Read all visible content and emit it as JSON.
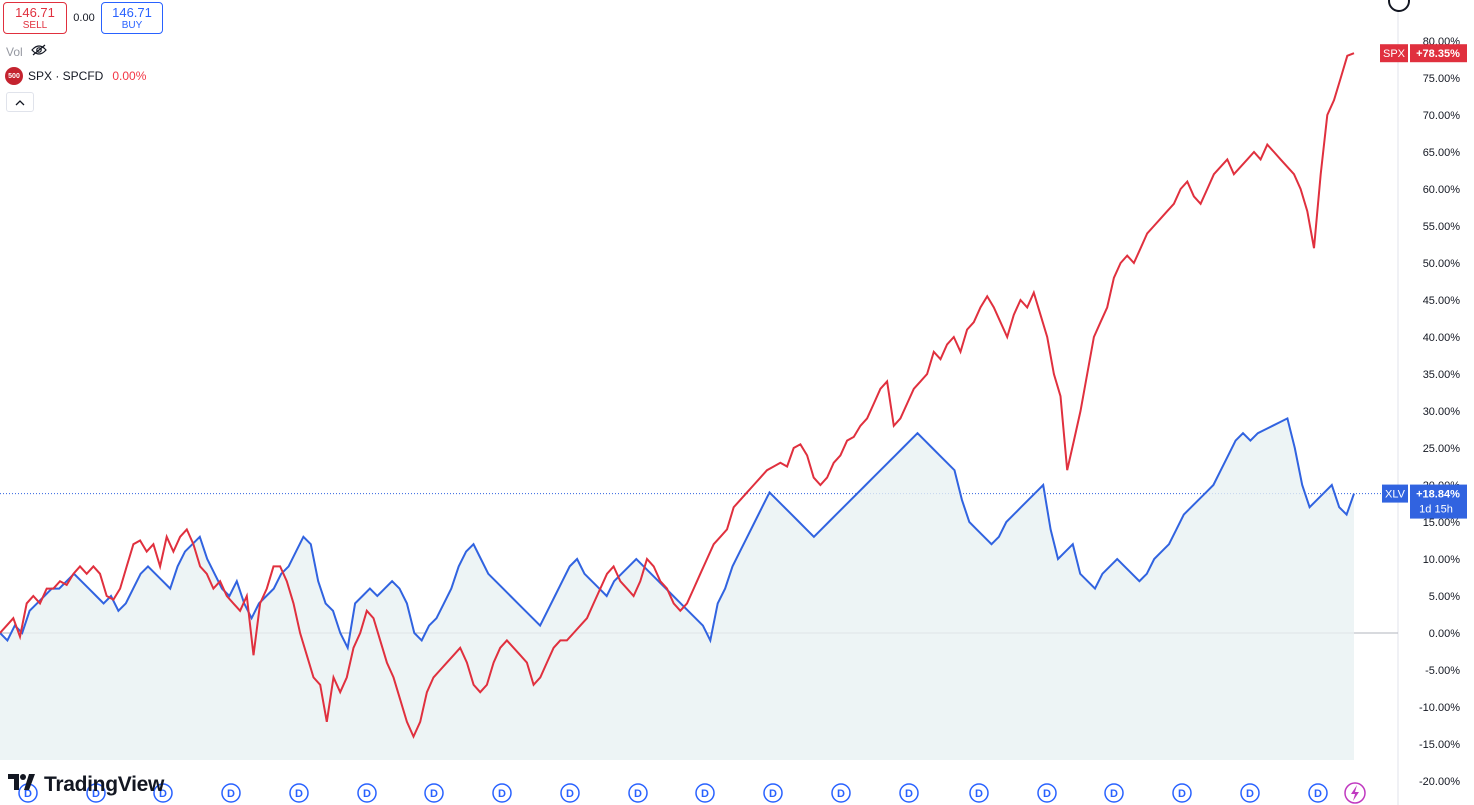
{
  "trade": {
    "sell_price": "146.71",
    "sell_label": "SELL",
    "buy_price": "146.71",
    "buy_label": "BUY",
    "spread": "0.00"
  },
  "legend": {
    "vol_label": "Vol",
    "badge": "500",
    "symbol": "SPX · SPCFD",
    "change": "0.00%"
  },
  "brand": {
    "name": "TradingView"
  },
  "icons": {
    "hide": "eye-slash-icon",
    "collapse": "chevron-up-icon",
    "logo": "tradingview-logo-icon",
    "dividend": "dividend-marker-icon",
    "lightning": "lightning-icon"
  },
  "colors": {
    "spx": "#e0303e",
    "xlv": "#3163e0",
    "area": "#e8f1f3",
    "grid": "#b2b5be"
  },
  "chart_data": {
    "type": "line",
    "y_unit": "%",
    "ylim": [
      -20,
      82
    ],
    "grid": false,
    "y_ticks": [
      "80.00%",
      "75.00%",
      "70.00%",
      "65.00%",
      "60.00%",
      "55.00%",
      "50.00%",
      "45.00%",
      "40.00%",
      "35.00%",
      "30.00%",
      "25.00%",
      "20.00%",
      "15.00%",
      "10.00%",
      "5.00%",
      "0.00%",
      "-5.00%",
      "-10.00%",
      "-15.00%",
      "-20.00%"
    ],
    "series": [
      {
        "name": "SPX",
        "last_label": "+78.35%",
        "values": [
          0,
          1,
          2,
          -0.5,
          4,
          5,
          4,
          6,
          6,
          7,
          6.5,
          8,
          9,
          8,
          9,
          8,
          5,
          4.5,
          6,
          9,
          12,
          12.5,
          11,
          12,
          9,
          13,
          11,
          13,
          14,
          12,
          9,
          8,
          6,
          7,
          5,
          4,
          3,
          5,
          -3,
          4,
          6,
          9,
          9,
          7,
          4,
          0,
          -3,
          -6,
          -7,
          -12,
          -6,
          -8,
          -6,
          -2,
          0,
          3,
          2,
          -1,
          -4,
          -6,
          -9,
          -12,
          -14,
          -12,
          -8,
          -6,
          -5,
          -4,
          -3,
          -2,
          -4,
          -7,
          -8,
          -7,
          -4,
          -2,
          -1,
          -2,
          -3,
          -4,
          -7,
          -6,
          -4,
          -2,
          -1,
          -1,
          0,
          1,
          2,
          4,
          6,
          8,
          9,
          7,
          6,
          5,
          7,
          10,
          9,
          7,
          6,
          4,
          3,
          4,
          6,
          8,
          10,
          12,
          13,
          14,
          17,
          18,
          19,
          20,
          21,
          22,
          22.5,
          23,
          22.5,
          25,
          25.5,
          24,
          21,
          20,
          21,
          23,
          24,
          26,
          26.5,
          28,
          29,
          31,
          33,
          34,
          28,
          29,
          31,
          33,
          34,
          35,
          38,
          37,
          39,
          40,
          38,
          41,
          42,
          44,
          45.5,
          44,
          42,
          40,
          43,
          45,
          44,
          46,
          43,
          40,
          35,
          32,
          22,
          26,
          30,
          35,
          40,
          42,
          44,
          48,
          50,
          51,
          50,
          52,
          54,
          55,
          56,
          57,
          58,
          60,
          61,
          59,
          58,
          60,
          62,
          63,
          64,
          62,
          63,
          64,
          65,
          64,
          66,
          65,
          64,
          63,
          62,
          60,
          57,
          52,
          62,
          70,
          72,
          75,
          78,
          78.35
        ]
      },
      {
        "name": "XLV",
        "last_label": "+18.84%",
        "values": [
          0,
          -1,
          1,
          0,
          3,
          4,
          5,
          6,
          6,
          7,
          8,
          7,
          6,
          5,
          4,
          5,
          3,
          4,
          6,
          8,
          9,
          8,
          7,
          6,
          9,
          11,
          12,
          13,
          10,
          8,
          6,
          5,
          7,
          4,
          2,
          4,
          5,
          6,
          8,
          9,
          11,
          13,
          12,
          7,
          4,
          3,
          0,
          -2,
          4,
          5,
          6,
          5,
          6,
          7,
          6,
          4,
          0,
          -1,
          1,
          2,
          4,
          6,
          9,
          11,
          12,
          10,
          8,
          7,
          6,
          5,
          4,
          3,
          2,
          1,
          3,
          5,
          7,
          9,
          10,
          8,
          7,
          6,
          5,
          7,
          8,
          9,
          10,
          9,
          8,
          7,
          6,
          5,
          4,
          3,
          2,
          1,
          -1,
          4,
          6,
          9,
          11,
          13,
          15,
          17,
          19,
          18,
          17,
          16,
          15,
          14,
          13,
          14,
          15,
          16,
          17,
          18,
          19,
          20,
          21,
          22,
          23,
          24,
          25,
          26,
          27,
          26,
          25,
          24,
          23,
          22,
          18,
          15,
          14,
          13,
          12,
          13,
          15,
          16,
          17,
          18,
          19,
          20,
          14,
          10,
          11,
          12,
          8,
          7,
          6,
          8,
          9,
          10,
          9,
          8,
          7,
          8,
          10,
          11,
          12,
          14,
          16,
          17,
          18,
          19,
          20,
          22,
          24,
          26,
          27,
          26,
          27,
          27.5,
          28,
          28.5,
          29,
          25,
          20,
          17,
          18,
          19,
          20,
          17,
          16,
          18.84
        ]
      }
    ],
    "xlv_countdown": "1d 15h",
    "dividend_marker": "D",
    "dividend_count": 22
  }
}
